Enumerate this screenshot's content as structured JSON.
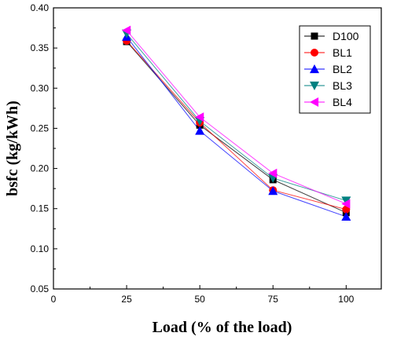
{
  "chart_data": {
    "type": "line",
    "xlabel": "Load (% of the load)",
    "ylabel": "bsfc (kg/kWh)",
    "xlim": [
      0,
      112
    ],
    "ylim": [
      0.05,
      0.4
    ],
    "xticks": [
      "0",
      "25",
      "50",
      "75",
      "100"
    ],
    "yticks": [
      "0.05",
      "0.10",
      "0.15",
      "0.20",
      "0.25",
      "0.30",
      "0.35",
      "0.40"
    ],
    "x": [
      25,
      50,
      75,
      100
    ],
    "legend_position": "top-right",
    "grid": false,
    "series": [
      {
        "name": "D100",
        "values": [
          0.358,
          0.254,
          0.186,
          0.145
        ],
        "color": "#000000",
        "marker": "square"
      },
      {
        "name": "BL1",
        "values": [
          0.359,
          0.257,
          0.173,
          0.149
        ],
        "color": "#ff0000",
        "marker": "circle"
      },
      {
        "name": "BL2",
        "values": [
          0.364,
          0.247,
          0.172,
          0.14
        ],
        "color": "#0000ff",
        "marker": "triangle-up"
      },
      {
        "name": "BL3",
        "values": [
          0.368,
          0.259,
          0.188,
          0.16
        ],
        "color": "#008080",
        "marker": "triangle-down"
      },
      {
        "name": "BL4",
        "values": [
          0.372,
          0.264,
          0.194,
          0.156
        ],
        "color": "#ff00ff",
        "marker": "triangle-left"
      }
    ]
  }
}
